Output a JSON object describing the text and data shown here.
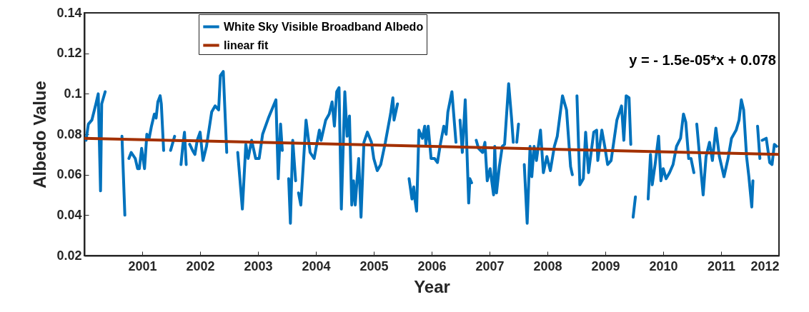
{
  "chart_data": {
    "type": "line",
    "xlabel": "Year",
    "ylabel": "Albedo Value",
    "xlim": [
      2000,
      2012
    ],
    "xticks": [
      2001,
      2002,
      2003,
      2004,
      2005,
      2006,
      2007,
      2008,
      2009,
      2010,
      2011,
      2012
    ],
    "ylim": [
      0.02,
      0.14
    ],
    "yticks": [
      0.02,
      0.04,
      0.06,
      0.08,
      0.1,
      0.12,
      0.14
    ],
    "grid": false,
    "legend": "top",
    "marker": "none",
    "line_style": "solid",
    "annotations": [
      "y = - 1.5e-05*x + 0.078"
    ],
    "series": [
      {
        "name": "White Sky Visible Broadband Albedo",
        "color": "#0072bd",
        "x": [
          2000.03,
          2000.07,
          2000.13,
          2000.2,
          2000.24,
          2000.28,
          2000.3,
          2000.36,
          2000.5,
          2000.65,
          2000.7,
          2000.74,
          2000.77,
          2000.81,
          2000.88,
          2000.92,
          2000.95,
          2000.99,
          2001.04,
          2001.08,
          2001.12,
          2001.16,
          2001.21,
          2001.24,
          2001.27,
          2001.31,
          2001.33,
          2001.37,
          2001.43,
          2001.49,
          2001.56,
          2001.62,
          2001.67,
          2001.7,
          2001.73,
          2001.76,
          2001.79,
          2001.82,
          2001.87,
          2001.91,
          2001.95,
          2002.0,
          2002.05,
          2002.11,
          2002.2,
          2002.26,
          2002.32,
          2002.35,
          2002.4,
          2002.46,
          2002.6,
          2002.65,
          2002.73,
          2002.79,
          2002.83,
          2002.89,
          2002.96,
          2003.02,
          2003.08,
          2003.18,
          2003.31,
          2003.35,
          2003.39,
          2003.42,
          2003.48,
          2003.53,
          2003.56,
          2003.6,
          2003.65,
          2003.67,
          2003.7,
          2003.74,
          2003.83,
          2003.9,
          2003.97,
          2004.06,
          2004.09,
          2004.17,
          2004.23,
          2004.28,
          2004.32,
          2004.36,
          2004.4,
          2004.44,
          2004.5,
          2004.54,
          2004.58,
          2004.62,
          2004.65,
          2004.68,
          2004.71,
          2004.74,
          2004.78,
          2004.83,
          2004.89,
          2004.96,
          2005.0,
          2005.06,
          2005.12,
          2005.2,
          2005.29,
          2005.33,
          2005.35,
          2005.41,
          2005.5,
          2005.61,
          2005.66,
          2005.69,
          2005.71,
          2005.74,
          2005.78,
          2005.84,
          2005.88,
          2005.9,
          2005.94,
          2005.99,
          2006.05,
          2006.1,
          2006.15,
          2006.21,
          2006.25,
          2006.28,
          2006.35,
          2006.42,
          2006.46,
          2006.49,
          2006.53,
          2006.58,
          2006.64,
          2006.66,
          2006.69,
          2006.73,
          2006.77,
          2006.81,
          2006.88,
          2006.92,
          2006.96,
          2007.01,
          2007.07,
          2007.09,
          2007.12,
          2007.17,
          2007.22,
          2007.26,
          2007.33,
          2007.38,
          2007.41,
          2007.44,
          2007.47,
          2007.5,
          2007.55,
          2007.6,
          2007.65,
          2007.7,
          2007.73,
          2007.77,
          2007.81,
          2007.88,
          2007.93,
          2007.99,
          2008.05,
          2008.12,
          2008.17,
          2008.26,
          2008.33,
          2008.4,
          2008.43,
          2008.47,
          2008.51,
          2008.56,
          2008.62,
          2008.66,
          2008.71,
          2008.8,
          2008.85,
          2008.87,
          2008.94,
          2008.99,
          2009.04,
          2009.1,
          2009.2,
          2009.28,
          2009.32,
          2009.36,
          2009.41,
          2009.44,
          2009.46,
          2009.48,
          2009.52,
          2009.63,
          2009.74,
          2009.78,
          2009.81,
          2009.86,
          2009.92,
          2009.96,
          2010.0,
          2010.05,
          2010.11,
          2010.17,
          2010.23,
          2010.3,
          2010.35,
          2010.39,
          2010.44,
          2010.46,
          2010.48,
          2010.53,
          2010.55,
          2010.58,
          2010.62,
          2010.69,
          2010.74,
          2010.8,
          2010.85,
          2010.91,
          2010.97,
          2011.05,
          2011.12,
          2011.18,
          2011.26,
          2011.31,
          2011.35,
          2011.39,
          2011.44,
          2011.48,
          2011.53,
          2011.55,
          2011.59,
          2011.63,
          2011.67,
          2011.69,
          2011.71,
          2011.78,
          2011.84,
          2011.88,
          2011.92,
          2011.96
        ],
        "values": [
          0.077,
          0.085,
          0.087,
          0.095,
          0.1,
          0.052,
          0.095,
          0.101,
          null,
          0.079,
          0.04,
          null,
          0.068,
          0.071,
          0.068,
          0.063,
          0.063,
          0.073,
          0.063,
          0.08,
          0.078,
          0.084,
          0.09,
          0.088,
          0.096,
          0.099,
          0.095,
          0.072,
          null,
          0.072,
          0.079,
          null,
          0.065,
          0.074,
          0.081,
          0.065,
          null,
          0.075,
          0.072,
          0.07,
          0.077,
          0.081,
          0.067,
          0.074,
          0.091,
          0.094,
          0.092,
          0.109,
          0.111,
          0.071,
          null,
          0.071,
          0.043,
          0.075,
          0.068,
          0.077,
          0.068,
          0.068,
          0.08,
          0.088,
          0.097,
          0.058,
          0.085,
          0.072,
          null,
          0.058,
          0.036,
          0.077,
          0.057,
          null,
          0.051,
          0.045,
          0.087,
          0.071,
          0.068,
          0.082,
          0.077,
          0.087,
          0.09,
          0.096,
          0.084,
          0.101,
          0.103,
          0.043,
          0.101,
          0.079,
          0.089,
          0.045,
          0.057,
          0.045,
          0.057,
          0.068,
          0.039,
          0.076,
          0.081,
          0.076,
          0.068,
          0.062,
          0.065,
          0.076,
          0.09,
          0.098,
          0.087,
          0.095,
          null,
          0.058,
          0.048,
          0.054,
          0.048,
          0.042,
          0.082,
          0.078,
          0.084,
          0.075,
          0.084,
          0.068,
          0.068,
          0.066,
          0.075,
          0.084,
          0.08,
          0.091,
          0.101,
          0.076,
          null,
          0.087,
          0.071,
          0.097,
          0.046,
          0.058,
          0.056,
          null,
          0.077,
          0.073,
          0.071,
          0.076,
          0.057,
          0.063,
          0.05,
          0.074,
          0.051,
          0.064,
          0.074,
          0.075,
          0.105,
          0.088,
          0.076,
          null,
          0.076,
          0.085,
          null,
          0.065,
          0.036,
          0.074,
          0.059,
          0.074,
          0.067,
          0.082,
          0.061,
          0.069,
          0.062,
          0.074,
          0.079,
          0.099,
          0.092,
          0.064,
          0.06,
          null,
          0.099,
          0.055,
          0.058,
          0.081,
          0.061,
          0.081,
          0.082,
          0.067,
          0.082,
          0.074,
          0.065,
          0.067,
          0.087,
          0.094,
          0.077,
          0.099,
          0.098,
          0.075,
          null,
          0.039,
          0.049,
          null,
          0.048,
          0.07,
          0.055,
          0.065,
          0.079,
          0.057,
          0.063,
          0.058,
          0.061,
          0.065,
          0.074,
          0.078,
          0.09,
          0.086,
          0.068,
          null,
          0.068,
          0.061,
          null,
          0.085,
          0.072,
          0.05,
          0.069,
          0.076,
          0.067,
          0.083,
          0.069,
          0.059,
          0.068,
          0.078,
          0.082,
          0.087,
          0.097,
          0.092,
          0.069,
          0.059,
          0.044,
          0.057,
          null,
          0.084,
          0.068,
          null,
          0.077,
          0.078,
          0.066,
          0.065,
          0.075,
          0.074
        ]
      },
      {
        "name": "linear fit",
        "color": "#a33000",
        "x": [
          2000,
          2012
        ],
        "values": [
          0.078,
          0.07
        ]
      }
    ]
  }
}
